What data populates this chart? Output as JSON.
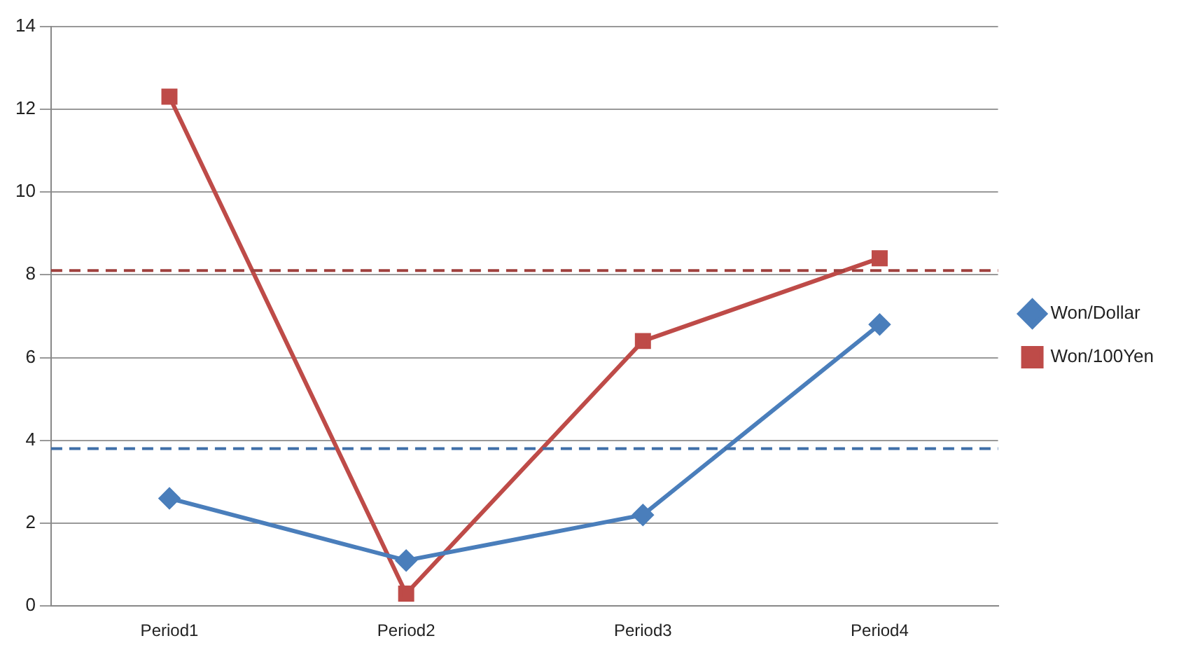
{
  "chart_data": {
    "type": "line",
    "categories": [
      "Period1",
      "Period2",
      "Period3",
      "Period4"
    ],
    "series": [
      {
        "name": "Won/Dollar",
        "color": "#4a7ebb",
        "values": [
          2.6,
          1.1,
          2.2,
          6.8
        ],
        "marker": "diamond"
      },
      {
        "name": "Won/100Yen",
        "color": "#be4b48",
        "values": [
          12.3,
          0.3,
          6.4,
          8.4
        ],
        "marker": "square"
      }
    ],
    "ylim": [
      0,
      14
    ],
    "yticks": [
      0,
      2,
      4,
      6,
      8,
      10,
      12,
      14
    ],
    "grid": "y",
    "legend": "right",
    "ref_lines": [
      {
        "axis": "y",
        "value": 8.1,
        "color": "#a0413e",
        "line_style": "dashed"
      },
      {
        "axis": "y",
        "value": 3.8,
        "color": "#3f6fa8",
        "line_style": "dashed"
      }
    ]
  }
}
